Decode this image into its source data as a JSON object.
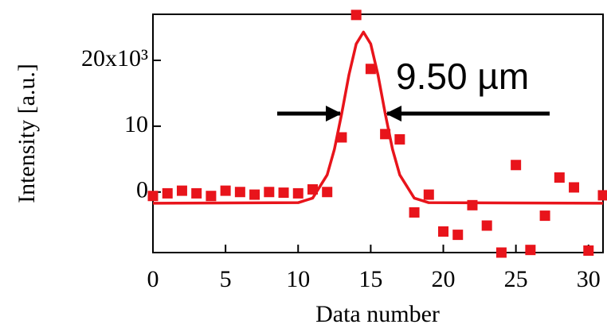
{
  "chart_data": {
    "type": "scatter",
    "xlabel": "Data number",
    "ylabel": "Intensity [a.u.]",
    "annotation": "9.50 µm",
    "xlim": [
      0,
      31
    ],
    "ylim": [
      -9.2,
      27
    ],
    "xticks": [
      0,
      5,
      10,
      15,
      20,
      25,
      30
    ],
    "yticks": [
      0,
      10,
      {
        "value": 20,
        "label": "20x10³"
      }
    ],
    "series": [
      {
        "type": "scatter",
        "color": "#e8141b",
        "x": [
          0,
          1,
          2,
          3,
          4,
          5,
          6,
          7,
          8,
          9,
          10,
          11,
          12,
          13,
          14,
          15,
          16,
          17,
          18,
          19,
          20,
          21,
          22,
          23,
          24,
          25,
          26,
          27,
          28,
          29,
          30,
          31
        ],
        "values": [
          -0.6,
          -0.2,
          0.2,
          -0.2,
          -0.6,
          0.2,
          0,
          -0.4,
          0,
          -0.1,
          -0.2,
          0.4,
          0,
          8.3,
          26.9,
          18.7,
          8.8,
          8.0,
          -3.1,
          -0.4,
          -6.0,
          -6.5,
          -2.0,
          -5.1,
          -9.2,
          4.1,
          -8.8,
          -3.6,
          2.2,
          0.7,
          -8.9,
          -0.5
        ]
      },
      {
        "type": "line",
        "color": "#e8141b",
        "x": [
          0,
          10,
          11,
          12,
          12.5,
          13,
          13.5,
          14,
          14.5,
          15,
          15.5,
          16,
          16.5,
          17,
          18,
          19,
          31
        ],
        "values": [
          -1.7,
          -1.62,
          -0.93,
          2.6,
          6.5,
          11.9,
          17.8,
          22.5,
          24.3,
          22.5,
          17.8,
          11.9,
          6.5,
          2.6,
          -0.93,
          -1.62,
          -1.7
        ]
      }
    ]
  }
}
